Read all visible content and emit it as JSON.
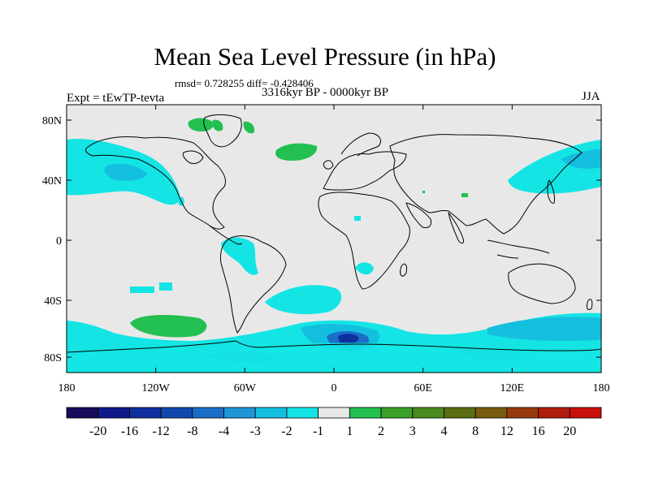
{
  "title": "Mean Sea Level Pressure (in hPa)",
  "stats": "rmsd= 0.728255 diff= -0.428406",
  "experiment": "Expt = tEwTP-tevta",
  "period": "3316kyr BP - 0000kyr BP",
  "season": "JJA",
  "lat_ticks": [
    "80N",
    "40N",
    "0",
    "40S",
    "80S"
  ],
  "lon_ticks": [
    "180",
    "120W",
    "60W",
    "0",
    "60E",
    "120E",
    "180"
  ],
  "colorbar": {
    "levels": [
      "-20",
      "-16",
      "-12",
      "-8",
      "-4",
      "-3",
      "-2",
      "-1",
      "1",
      "2",
      "3",
      "4",
      "8",
      "12",
      "16",
      "20"
    ],
    "colors": [
      "#1a0a5c",
      "#101a8a",
      "#1030a0",
      "#1048b0",
      "#1a6ec8",
      "#1e96d8",
      "#14bede",
      "#14e4e4",
      "#e8e8e8",
      "#22c050",
      "#3aa02a",
      "#4a8a1e",
      "#5a6e14",
      "#7a5a0c",
      "#983a0c",
      "#b01c0c",
      "#c8100a"
    ]
  },
  "colors": {
    "ocean_land_background": "#e8e8e8",
    "coastline": "#000000",
    "anomaly_neg_weak": "#14e4e4",
    "anomaly_neg_mid": "#14bede",
    "anomaly_neg_strong": "#1a6ec8",
    "anomaly_pos_weak": "#22c050"
  }
}
